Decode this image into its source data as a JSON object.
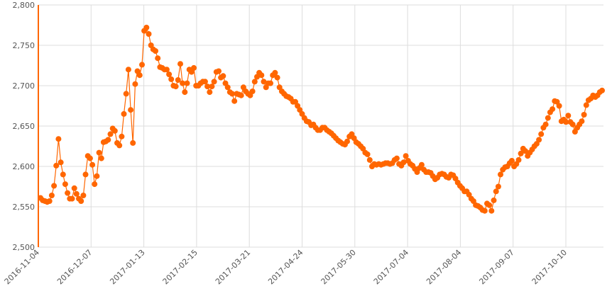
{
  "colors": {
    "series": "#ff6600",
    "grid": "#dddddd",
    "axis": "#ff6600",
    "text": "#555555"
  },
  "chart_data": {
    "type": "line",
    "title": "",
    "xlabel": "",
    "ylabel": "",
    "ylim": [
      2500,
      2800
    ],
    "y_ticks": [
      "2,500",
      "2,550",
      "2,600",
      "2,650",
      "2,700",
      "2,750",
      "2,800"
    ],
    "x_ticks": [
      "2016-11-04",
      "2016-12-07",
      "2017-01-13",
      "2017-02-15",
      "2017-03-21",
      "2017-04-24",
      "2017-05-30",
      "2017-07-04",
      "2017-08-04",
      "2017-09-07",
      "2017-10-10"
    ],
    "grid": true,
    "series": [
      {
        "values": [
          2561,
          2558,
          2557,
          2556,
          2557,
          2564,
          2576,
          2601,
          2634,
          2605,
          2590,
          2578,
          2567,
          2560,
          2560,
          2573,
          2566,
          2560,
          2557,
          2564,
          2590,
          2613,
          2610,
          2602,
          2578,
          2588,
          2617,
          2610,
          2630,
          2631,
          2633,
          2640,
          2647,
          2644,
          2629,
          2626,
          2637,
          2665,
          2690,
          2720,
          2670,
          2629,
          2702,
          2718,
          2713,
          2726,
          2768,
          2772,
          2764,
          2750,
          2745,
          2743,
          2734,
          2723,
          2722,
          2720,
          2720,
          2714,
          2708,
          2700,
          2699,
          2707,
          2727,
          2703,
          2692,
          2703,
          2720,
          2717,
          2722,
          2700,
          2700,
          2703,
          2705,
          2705,
          2699,
          2692,
          2699,
          2705,
          2717,
          2718,
          2710,
          2712,
          2703,
          2698,
          2692,
          2690,
          2681,
          2690,
          2689,
          2688,
          2698,
          2693,
          2690,
          2688,
          2693,
          2705,
          2711,
          2716,
          2713,
          2705,
          2698,
          2703,
          2703,
          2713,
          2716,
          2710,
          2698,
          2693,
          2690,
          2687,
          2686,
          2684,
          2680,
          2680,
          2675,
          2670,
          2665,
          2660,
          2656,
          2655,
          2651,
          2652,
          2648,
          2645,
          2645,
          2648,
          2648,
          2645,
          2643,
          2641,
          2638,
          2635,
          2632,
          2630,
          2628,
          2627,
          2631,
          2637,
          2640,
          2635,
          2630,
          2628,
          2625,
          2622,
          2617,
          2615,
          2608,
          2600,
          2603,
          2602,
          2603,
          2602,
          2603,
          2604,
          2604,
          2603,
          2604,
          2608,
          2610,
          2603,
          2601,
          2605,
          2613,
          2607,
          2603,
          2601,
          2597,
          2593,
          2598,
          2602,
          2596,
          2593,
          2593,
          2592,
          2588,
          2584,
          2586,
          2590,
          2591,
          2590,
          2587,
          2586,
          2590,
          2589,
          2585,
          2580,
          2576,
          2573,
          2569,
          2569,
          2565,
          2560,
          2557,
          2552,
          2551,
          2549,
          2546,
          2545,
          2554,
          2552,
          2545,
          2558,
          2569,
          2575,
          2590,
          2596,
          2599,
          2600,
          2604,
          2607,
          2600,
          2603,
          2608,
          2616,
          2622,
          2619,
          2613,
          2617,
          2621,
          2625,
          2628,
          2633,
          2640,
          2648,
          2652,
          2660,
          2667,
          2671,
          2681,
          2680,
          2675,
          2656,
          2658,
          2655,
          2663,
          2655,
          2652,
          2643,
          2648,
          2652,
          2656,
          2664,
          2676,
          2682,
          2684,
          2688,
          2686,
          2688,
          2692,
          2694
        ]
      }
    ]
  }
}
